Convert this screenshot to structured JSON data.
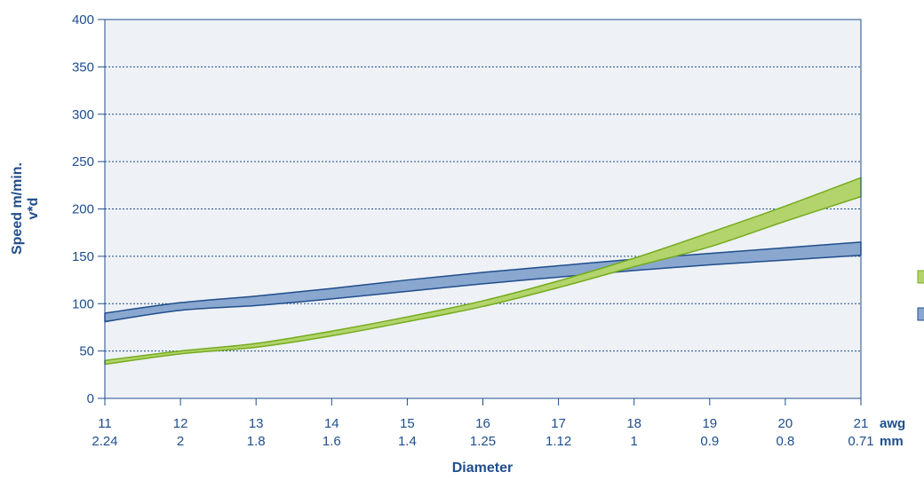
{
  "colors": {
    "plot_background": "#eef1f6",
    "axis": "#1f4e8c",
    "grid": "#1f4e8c",
    "text": "#1f4e8c",
    "green_fill": "#b3d46c",
    "green_stroke": "#74ab1c",
    "blue_fill": "#8aa7cf",
    "blue_stroke": "#1f4e8c"
  },
  "chart_data": {
    "type": "area",
    "ylabel": "Speed m/min.",
    "ylabel2": "v*d",
    "xlabel": "Diameter",
    "ylim": [
      0,
      400
    ],
    "yticks": [
      0,
      50,
      100,
      150,
      200,
      250,
      300,
      350,
      400
    ],
    "grid": "horizontal dotted",
    "x_awg": [
      11,
      12,
      13,
      14,
      15,
      16,
      17,
      18,
      19,
      20,
      21
    ],
    "x_mm": [
      "2.24",
      "2",
      "1.8",
      "1.6",
      "1.4",
      "1.25",
      "1.12",
      "1",
      "0.9",
      "0.8",
      "0.71"
    ],
    "x_unit_awg": "awg",
    "x_unit_mm": "mm",
    "series": [
      {
        "color": "#b3d46c",
        "upper": [
          40,
          50,
          58,
          71,
          86,
          103,
          124,
          148,
          175,
          203,
          233
        ],
        "lower": [
          36,
          47,
          54,
          66,
          81,
          97,
          117,
          139,
          160,
          187,
          213
        ]
      },
      {
        "color": "#8aa7cf",
        "upper": [
          90,
          101,
          108,
          116,
          125,
          133,
          140,
          147,
          153,
          159,
          165
        ],
        "lower": [
          81,
          93,
          98,
          105,
          113,
          121,
          128,
          135,
          141,
          146,
          151
        ]
      }
    ]
  }
}
